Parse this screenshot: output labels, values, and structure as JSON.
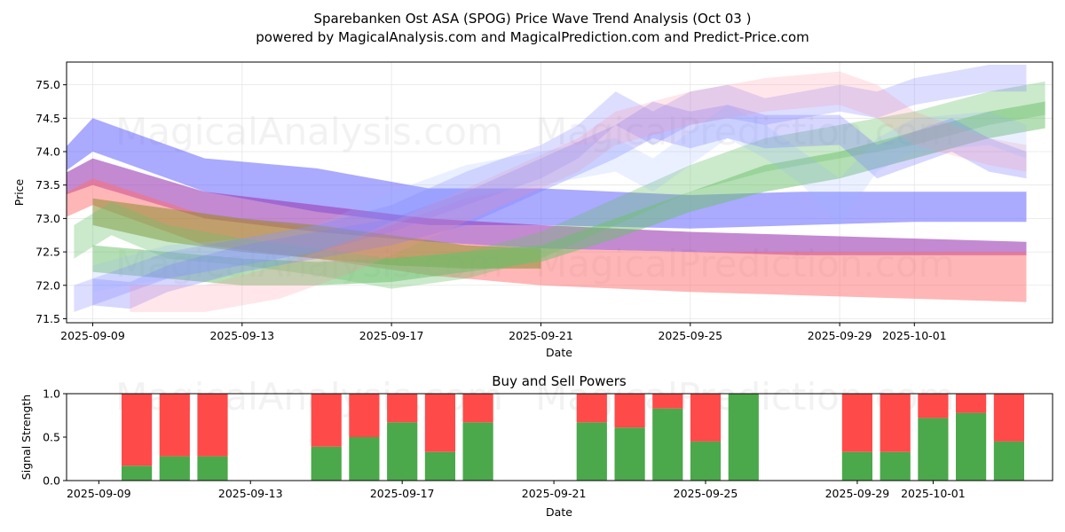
{
  "chart_data": [
    {
      "type": "area",
      "title": "Sparebanken Ost ASA (SPOG) Price Wave Trend Analysis (Oct 03 )",
      "subtitle": "powered by MagicalAnalysis.com and MagicalPrediction.com and Predict-Price.com",
      "xlabel": "Date",
      "ylabel": "Price",
      "xlim": [
        -0.7,
        25.7
      ],
      "ylim": [
        71.44,
        75.34
      ],
      "grid": true,
      "x_ticks": [
        {
          "x": 0,
          "label": "2025-09-09"
        },
        {
          "x": 4,
          "label": "2025-09-13"
        },
        {
          "x": 8,
          "label": "2025-09-17"
        },
        {
          "x": 12,
          "label": "2025-09-21"
        },
        {
          "x": 16,
          "label": "2025-09-25"
        },
        {
          "x": 20,
          "label": "2025-09-29"
        },
        {
          "x": 22,
          "label": "2025-10-01"
        }
      ],
      "y_ticks": [
        71.5,
        72.0,
        72.5,
        73.0,
        73.5,
        74.0,
        74.5,
        75.0
      ],
      "series": [
        {
          "name": "blue wide band",
          "color": "#6464ff",
          "alpha": 0.55,
          "x": [
            -1,
            0,
            3,
            6,
            9,
            12,
            16,
            19,
            22,
            25
          ],
          "upper": [
            73.9,
            74.5,
            73.9,
            73.75,
            73.45,
            73.45,
            73.35,
            73.4,
            73.4,
            73.4
          ],
          "lower": [
            73.6,
            74.0,
            73.4,
            73.1,
            72.9,
            72.9,
            72.85,
            72.9,
            72.95,
            72.95
          ]
        },
        {
          "name": "purple band",
          "color": "#9b3cb4",
          "alpha": 0.6,
          "x": [
            -1,
            0,
            3,
            6,
            9,
            12,
            16,
            19,
            22,
            25
          ],
          "upper": [
            73.6,
            73.9,
            73.4,
            73.2,
            73.0,
            72.9,
            72.8,
            72.75,
            72.7,
            72.65
          ],
          "lower": [
            73.3,
            73.5,
            73.0,
            72.8,
            72.65,
            72.55,
            72.5,
            72.45,
            72.45,
            72.45
          ]
        },
        {
          "name": "red band",
          "color": "#ff6e6e",
          "alpha": 0.5,
          "x": [
            -1,
            0,
            3,
            6,
            9,
            12,
            16,
            19,
            22,
            25
          ],
          "upper": [
            73.3,
            73.6,
            73.05,
            72.85,
            72.65,
            72.55,
            72.5,
            72.5,
            72.5,
            72.5
          ],
          "lower": [
            72.95,
            73.2,
            72.6,
            72.4,
            72.15,
            72.0,
            71.9,
            71.85,
            71.8,
            71.75
          ]
        },
        {
          "name": "olive band",
          "color": "#8c8c32",
          "alpha": 0.55,
          "x": [
            0,
            2,
            4,
            6,
            8,
            10,
            12
          ],
          "upper": [
            73.3,
            73.15,
            73.0,
            72.9,
            72.75,
            72.6,
            72.55
          ],
          "lower": [
            72.9,
            72.65,
            72.5,
            72.4,
            72.3,
            72.25,
            72.25
          ]
        },
        {
          "name": "green rising band",
          "color": "#6abf6a",
          "alpha": 0.5,
          "x": [
            0,
            2,
            4,
            6,
            8,
            10,
            12,
            14,
            16,
            18,
            20,
            22,
            24,
            25.5
          ],
          "upper": [
            72.6,
            72.5,
            72.4,
            72.35,
            72.4,
            72.5,
            72.6,
            73.0,
            73.4,
            73.8,
            74.0,
            74.3,
            74.6,
            74.75
          ],
          "lower": [
            72.2,
            72.1,
            72.0,
            72.0,
            72.05,
            72.2,
            72.35,
            72.7,
            73.1,
            73.4,
            73.6,
            73.9,
            74.2,
            74.35
          ]
        },
        {
          "name": "green wave band",
          "color": "#6abf6a",
          "alpha": 0.35,
          "x": [
            -0.5,
            0.5,
            2,
            4,
            6,
            8,
            10,
            12,
            14,
            16,
            18,
            20,
            22,
            24,
            25.5
          ],
          "upper": [
            72.9,
            73.25,
            72.9,
            72.7,
            72.55,
            72.4,
            72.5,
            72.8,
            73.3,
            73.8,
            74.2,
            74.4,
            74.6,
            74.9,
            75.05
          ],
          "lower": [
            72.4,
            72.75,
            72.4,
            72.3,
            72.15,
            71.95,
            72.1,
            72.4,
            72.9,
            73.4,
            73.7,
            73.9,
            74.1,
            74.4,
            74.55
          ]
        },
        {
          "name": "blue wave band 1",
          "color": "#7878ff",
          "alpha": 0.3,
          "x": [
            0,
            1,
            2,
            4,
            6,
            8,
            10,
            12,
            14,
            15,
            16,
            17,
            18,
            20,
            21,
            22,
            23,
            24,
            25
          ],
          "upper": [
            72.1,
            72.05,
            72.3,
            72.6,
            72.8,
            73.0,
            73.4,
            73.9,
            74.4,
            74.75,
            74.6,
            74.7,
            74.55,
            74.55,
            74.1,
            74.3,
            74.5,
            74.2,
            74.0
          ],
          "lower": [
            71.7,
            71.65,
            71.9,
            72.2,
            72.4,
            72.6,
            72.9,
            73.4,
            73.9,
            74.2,
            74.05,
            74.2,
            74.05,
            74.1,
            73.6,
            73.8,
            74.0,
            73.7,
            73.6
          ]
        },
        {
          "name": "blue wave band 2",
          "color": "#7878ff",
          "alpha": 0.25,
          "x": [
            -0.5,
            1,
            2,
            4,
            6,
            8,
            10,
            12,
            13,
            14,
            15,
            16,
            17,
            18,
            19,
            20,
            21,
            22,
            23,
            24,
            25
          ],
          "upper": [
            72.0,
            72.3,
            72.5,
            72.7,
            72.9,
            73.2,
            73.7,
            74.1,
            74.4,
            74.9,
            74.6,
            74.9,
            75.0,
            74.8,
            74.9,
            75.0,
            74.9,
            75.1,
            75.2,
            75.3,
            75.3
          ],
          "lower": [
            71.6,
            71.9,
            72.1,
            72.3,
            72.5,
            72.8,
            73.2,
            73.6,
            73.9,
            74.4,
            74.1,
            74.4,
            74.5,
            74.4,
            74.5,
            74.6,
            74.5,
            74.7,
            74.8,
            74.9,
            74.9
          ]
        },
        {
          "name": "pink wave band",
          "color": "#ff8ca0",
          "alpha": 0.22,
          "x": [
            1,
            3,
            5,
            7,
            9,
            11,
            13,
            14,
            16,
            18,
            20,
            21,
            22,
            24,
            25
          ],
          "upper": [
            72.0,
            72.0,
            72.3,
            72.7,
            73.2,
            73.7,
            74.2,
            74.6,
            74.9,
            75.1,
            75.2,
            75.0,
            74.6,
            74.2,
            74.1
          ],
          "lower": [
            71.6,
            71.6,
            71.8,
            72.2,
            72.7,
            73.2,
            73.7,
            74.1,
            74.4,
            74.6,
            74.7,
            74.5,
            74.1,
            73.8,
            73.7
          ]
        },
        {
          "name": "light blue wave band",
          "color": "#96b4ff",
          "alpha": 0.2,
          "x": [
            0,
            2,
            4,
            6,
            8,
            10,
            12,
            14,
            15,
            16,
            17,
            18,
            19,
            20,
            21,
            22,
            24,
            25
          ],
          "upper": [
            72.3,
            72.6,
            72.7,
            72.9,
            73.4,
            73.8,
            74.0,
            74.2,
            73.9,
            74.3,
            74.7,
            74.4,
            74.0,
            73.6,
            74.2,
            74.5,
            74.6,
            74.4
          ],
          "lower": [
            71.9,
            72.1,
            72.3,
            72.5,
            72.9,
            73.3,
            73.5,
            73.7,
            73.4,
            73.8,
            74.2,
            73.9,
            73.5,
            72.9,
            73.7,
            74.0,
            74.1,
            73.9
          ]
        }
      ]
    },
    {
      "type": "bar",
      "title": "Buy and Sell Powers",
      "xlabel": "Date",
      "ylabel": "Signal Strength",
      "xlim": [
        -0.85,
        25.15
      ],
      "ylim": [
        0,
        1.0
      ],
      "y_ticks": [
        0.0,
        0.5,
        1.0
      ],
      "x_ticks": [
        {
          "x": 0,
          "label": "2025-09-09"
        },
        {
          "x": 4,
          "label": "2025-09-13"
        },
        {
          "x": 8,
          "label": "2025-09-17"
        },
        {
          "x": 12,
          "label": "2025-09-21"
        },
        {
          "x": 16,
          "label": "2025-09-25"
        },
        {
          "x": 20,
          "label": "2025-09-29"
        },
        {
          "x": 22,
          "label": "2025-10-01"
        }
      ],
      "bar_width": 0.8,
      "buy_color": "#4ba84b",
      "sell_color": "#ff4a4a",
      "series": [
        {
          "name": "Buy",
          "x": [
            1,
            2,
            3,
            6,
            7,
            8,
            9,
            10,
            13,
            14,
            15,
            16,
            17,
            20,
            21,
            22,
            23,
            24
          ],
          "values": [
            0.17,
            0.28,
            0.28,
            0.39,
            0.5,
            0.67,
            0.33,
            0.67,
            0.67,
            0.61,
            0.83,
            0.45,
            1.0,
            0.33,
            0.33,
            0.72,
            0.78,
            0.45
          ]
        },
        {
          "name": "Sell",
          "x": [
            1,
            2,
            3,
            6,
            7,
            8,
            9,
            10,
            13,
            14,
            15,
            16,
            17,
            20,
            21,
            22,
            23,
            24
          ],
          "values": [
            0.83,
            0.72,
            0.72,
            0.61,
            0.5,
            0.33,
            0.67,
            0.33,
            0.33,
            0.39,
            0.17,
            0.55,
            0.0,
            0.67,
            0.67,
            0.28,
            0.22,
            0.55
          ]
        }
      ]
    }
  ],
  "watermarks": [
    "MagicalAnalysis.com",
    "MagicalPrediction.com"
  ]
}
